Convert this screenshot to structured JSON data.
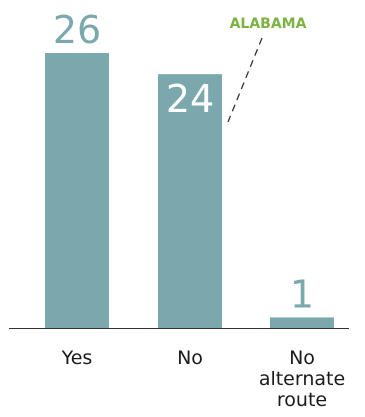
{
  "chart_data": {
    "type": "bar",
    "categories": [
      [
        "Yes"
      ],
      [
        "No"
      ],
      [
        "No",
        "alternate",
        "route"
      ]
    ],
    "values": [
      26,
      24,
      1
    ],
    "ylim": [
      0,
      26
    ],
    "grid": false,
    "legend": "none",
    "annotation": {
      "text": "ALABAMA",
      "target_category_index": 1
    },
    "colors": {
      "bar": "#7aa8ad",
      "label_outside": "#7aa8ad",
      "label_inside": "#ffffff",
      "annotation": "#7cb342",
      "axis": "#333333"
    }
  }
}
